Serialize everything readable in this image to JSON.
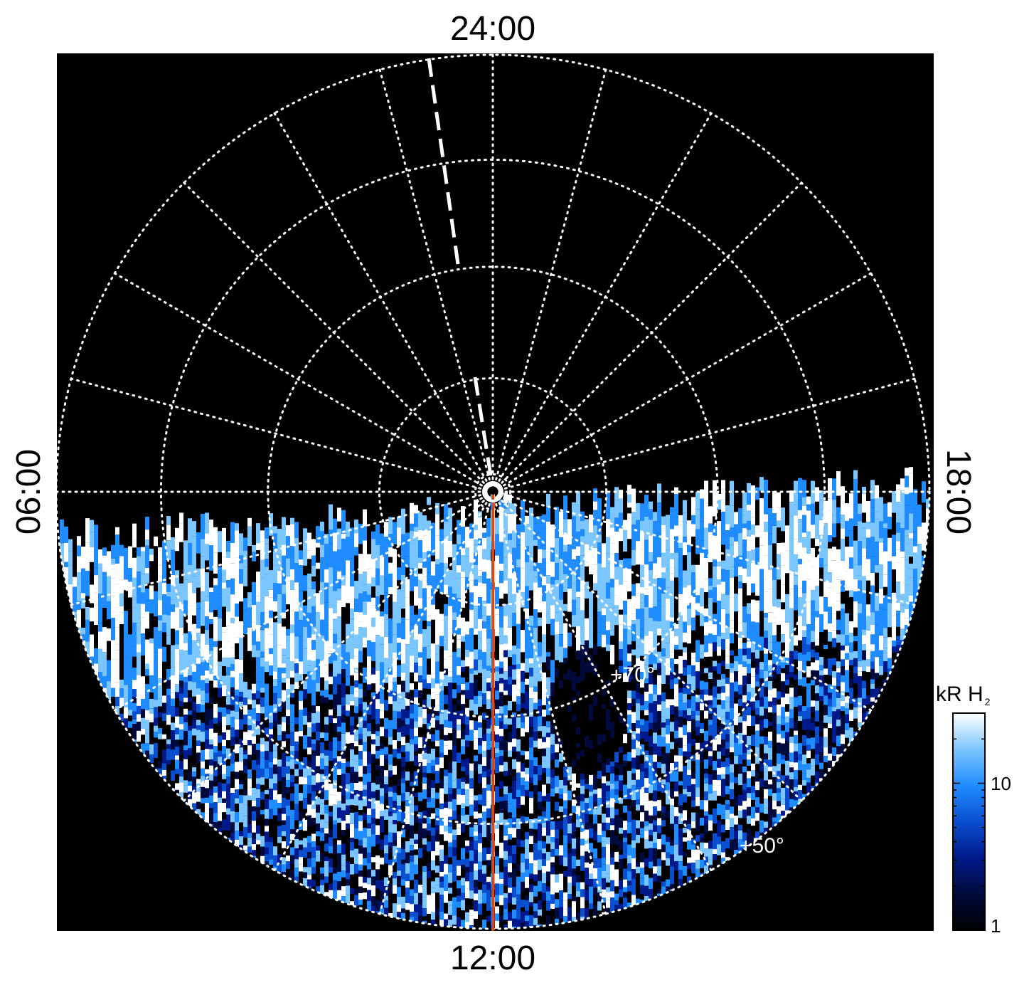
{
  "local_time_labels": {
    "top": "24:00",
    "bottom": "12:00",
    "left": "06:00",
    "right": "18:00"
  },
  "latitude_labels": [
    "+70°",
    "+50°"
  ],
  "colorbar": {
    "title_main": "kR H",
    "title_sub": "2",
    "tick_labels": [
      "10",
      "1"
    ],
    "range": [
      1,
      30
    ],
    "scale": "log",
    "colors": [
      "#000000",
      "#000a3c",
      "#001a8c",
      "#0a4fd0",
      "#1f8cff",
      "#7cc6ff",
      "#ffffff"
    ]
  },
  "colors": {
    "background": "#000000",
    "grid": "#ffffff",
    "meridian_line": "#d24a1e",
    "dashed_line": "#ffffff"
  },
  "icons": {
    "pole_marker": "pole-circle-icon"
  }
}
